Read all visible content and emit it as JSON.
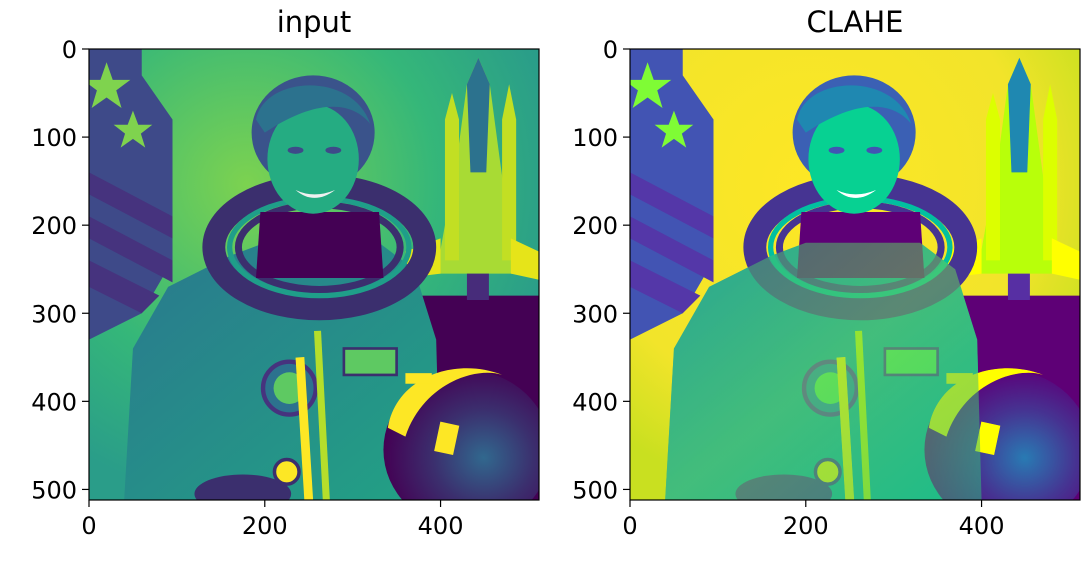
{
  "chart_data": [
    {
      "type": "image",
      "title": "input",
      "colormap": "viridis",
      "image_description": "astronaut portrait (grayscale intensity mapped to viridis)",
      "image_size": [
        512,
        512
      ],
      "xlim": [
        0,
        512
      ],
      "ylim": [
        512,
        0
      ],
      "xticks": [
        0,
        200,
        400
      ],
      "yticks": [
        0,
        100,
        200,
        300,
        400,
        500
      ],
      "xtick_labels": [
        "0",
        "200",
        "400"
      ],
      "ytick_labels": [
        "0",
        "100",
        "200",
        "300",
        "400",
        "500"
      ],
      "xlabel": "",
      "ylabel": "",
      "grid": false
    },
    {
      "type": "image",
      "title": "CLAHE",
      "colormap": "viridis",
      "image_description": "same astronaut portrait after CLAHE contrast equalization",
      "image_size": [
        512,
        512
      ],
      "xlim": [
        0,
        512
      ],
      "ylim": [
        512,
        0
      ],
      "xticks": [
        0,
        200,
        400
      ],
      "yticks": [
        0,
        100,
        200,
        300,
        400,
        500
      ],
      "xtick_labels": [
        "0",
        "200",
        "400"
      ],
      "ytick_labels": [
        "0",
        "100",
        "200",
        "300",
        "400",
        "500"
      ],
      "xlabel": "",
      "ylabel": "",
      "grid": false
    }
  ],
  "colors": {
    "viridis_dark": "#440154",
    "viridis_purple": "#3b2f6e",
    "viridis_blue": "#31688e",
    "viridis_teal": "#21918c",
    "viridis_green": "#35b779",
    "viridis_lime": "#90d743",
    "viridis_yellow": "#fde725"
  }
}
